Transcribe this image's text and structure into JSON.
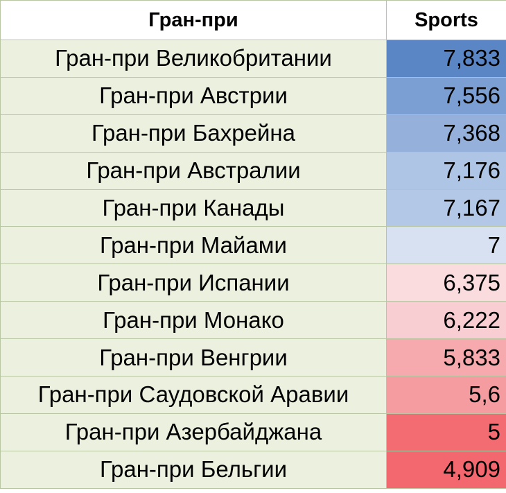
{
  "table": {
    "header": [
      "Гран-при",
      "Sports"
    ],
    "rows": [
      {
        "name": "Гран-при Великобритании",
        "value": "7,833",
        "color": "#5b86c6"
      },
      {
        "name": "Гран-при Австрии",
        "value": "7,556",
        "color": "#7c9fd3"
      },
      {
        "name": "Гран-при Бахрейна",
        "value": "7,368",
        "color": "#94b0db"
      },
      {
        "name": "Гран-при Австралии",
        "value": "7,176",
        "color": "#afc5e6"
      },
      {
        "name": "Гран-при Канады",
        "value": "7,167",
        "color": "#b3c8e7"
      },
      {
        "name": "Гран-при Майами",
        "value": "7",
        "color": "#d7e1f1"
      },
      {
        "name": "Гран-при Испании",
        "value": "6,375",
        "color": "#fadbde"
      },
      {
        "name": "Гран-при Монако",
        "value": "6,222",
        "color": "#f9ced2"
      },
      {
        "name": "Гран-при Венгрии",
        "value": "5,833",
        "color": "#f6aaae"
      },
      {
        "name": "Гран-при Саудовской Аравии",
        "value": "5,6",
        "color": "#f59ca1"
      },
      {
        "name": "Гран-при Азербайджана",
        "value": "5",
        "color": "#f26c72"
      },
      {
        "name": "Гран-при Бельгии",
        "value": "4,909",
        "color": "#f2686e"
      }
    ]
  }
}
